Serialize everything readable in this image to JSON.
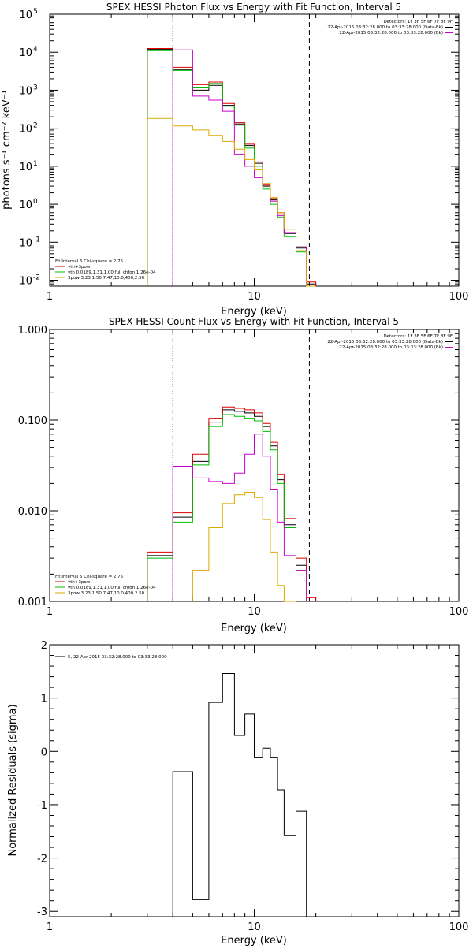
{
  "chart_data": [
    {
      "type": "line",
      "title": "SPEX HESSI Photon Flux vs Energy with Fit Function, Interval 5",
      "xlabel": "Energy (keV)",
      "ylabel": "photons s⁻¹ cm⁻² keV⁻¹",
      "xscale": "log",
      "yscale": "log",
      "xlim": [
        1,
        100
      ],
      "ylim": [
        0.007,
        100000
      ],
      "xticks": [
        {
          "v": 1,
          "label": "1"
        },
        {
          "v": 10,
          "label": "10"
        },
        {
          "v": 100,
          "label": "100"
        }
      ],
      "yticks": [
        {
          "v": 0.01,
          "base": "10",
          "exp": "-2"
        },
        {
          "v": 0.1,
          "base": "10",
          "exp": "-1"
        },
        {
          "v": 1,
          "base": "10",
          "exp": "0"
        },
        {
          "v": 10,
          "base": "10",
          "exp": "1"
        },
        {
          "v": 100,
          "base": "10",
          "exp": "2"
        },
        {
          "v": 1000,
          "base": "10",
          "exp": "3"
        },
        {
          "v": 10000,
          "base": "10",
          "exp": "4"
        },
        {
          "v": 100000,
          "base": "10",
          "exp": "5"
        }
      ],
      "vlines": [
        {
          "x": 4.0,
          "style": "dotted"
        },
        {
          "x": 18.6,
          "style": "dashed"
        }
      ],
      "legend_header": [
        "Detectors: 1F 3F 5F 6F 7F 8F 9F",
        "22-Apr-2015 03:32:28.000 to 03:33:28.000 (Data-Bk)",
        "22-Apr-2015 03:32:28.000 to 03:33:28.000 (Bk)"
      ],
      "legend_header_colors": [
        "",
        "#000000",
        "#cc00cc"
      ],
      "fit_legend": [
        "Fit Interval 5   Chi-square = 2.75",
        "vth+3pow",
        "vth 0.0189,1.31,1.00  full chfon 1.26e-04",
        "3pow 3.23,1.50,7.47,10.0,400,2.50"
      ],
      "fit_legend_colors": [
        "",
        "#cc0000",
        "#00bb00",
        "#ddaa00"
      ],
      "edges": [
        3.0,
        4.0,
        5.0,
        6.0,
        7.0,
        8.0,
        9.0,
        10.0,
        11.0,
        12.0,
        13.0,
        14.0,
        16.0,
        18.0,
        20.0
      ],
      "series": [
        {
          "color": "#000000",
          "values": [
            12000,
            3500,
            1000,
            1350,
            400,
            130,
            35,
            12,
            3.0,
            1.3,
            0.55,
            0.17,
            0.07,
            0.008
          ]
        },
        {
          "color": "#dd0000",
          "values": [
            12500,
            4000,
            1400,
            1650,
            450,
            140,
            38,
            13,
            3.2,
            1.4,
            0.6,
            0.18,
            0.075,
            0.009
          ]
        },
        {
          "color": "#00bb00",
          "values": [
            11000,
            3300,
            1150,
            1500,
            380,
            120,
            30,
            10,
            2.5,
            1.0,
            0.45,
            0.14,
            0.055,
            0.0065
          ]
        },
        {
          "color": "#cc00cc",
          "values": [
            null,
            11500,
            700,
            550,
            280,
            20,
            10,
            5,
            3.5,
            1.2,
            0.5,
            0.18,
            0.075,
            0.006
          ]
        },
        {
          "color": "#ddaa00",
          "values": [
            180,
            115,
            90,
            65,
            45,
            28,
            15,
            8,
            3.5,
            1.5,
            0.6,
            0.22,
            0.06,
            0.006
          ]
        }
      ]
    },
    {
      "type": "line",
      "title": "SPEX HESSI Count Flux vs Energy with Fit Function, Interval 5",
      "xlabel": "Energy (keV)",
      "ylabel": "",
      "xscale": "log",
      "yscale": "log",
      "xlim": [
        1,
        100
      ],
      "ylim": [
        0.001,
        1.0
      ],
      "xticks": [
        {
          "v": 1,
          "label": "1"
        },
        {
          "v": 10,
          "label": "10"
        },
        {
          "v": 100,
          "label": "100"
        }
      ],
      "yticks": [
        {
          "v": 0.001,
          "label": "0.001"
        },
        {
          "v": 0.01,
          "label": "0.010"
        },
        {
          "v": 0.1,
          "label": "0.100"
        },
        {
          "v": 1.0,
          "label": "1.000"
        }
      ],
      "vlines": [
        {
          "x": 4.0,
          "style": "dotted"
        },
        {
          "x": 18.6,
          "style": "dashed"
        }
      ],
      "legend_header": [
        "Detectors: 1F 3F 5F 6F 7F 8F 9F",
        "22-Apr-2015 03:32:28.000 to 03:33:28.000 (Data-Bk)",
        "22-Apr-2015 03:32:28.000 to 03:33:28.000 (Bk)"
      ],
      "legend_header_colors": [
        "",
        "#000000",
        "#cc00cc"
      ],
      "fit_legend": [
        "Fit Interval 5   Chi-square = 2.75",
        "vth+3pow",
        "vth 0.0189,1.31,1.00  full chfon 1.26e-04",
        "3pow 3.23,1.50,7.47,10.0,400,2.50"
      ],
      "fit_legend_colors": [
        "",
        "#cc0000",
        "#00bb00",
        "#ddaa00"
      ],
      "edges": [
        3.0,
        4.0,
        5.0,
        6.0,
        7.0,
        8.0,
        9.0,
        10.0,
        11.0,
        12.0,
        13.0,
        14.0,
        16.0,
        18.0,
        20.0
      ],
      "series": [
        {
          "color": "#000000",
          "values": [
            0.0032,
            0.0085,
            0.035,
            0.095,
            0.13,
            0.125,
            0.12,
            0.11,
            0.085,
            0.052,
            0.022,
            0.007,
            0.0025,
            null
          ]
        },
        {
          "color": "#dd0000",
          "values": [
            0.0035,
            0.0095,
            0.042,
            0.105,
            0.14,
            0.135,
            0.13,
            0.12,
            0.092,
            0.057,
            0.025,
            0.0082,
            0.003,
            0.0011
          ]
        },
        {
          "color": "#00bb00",
          "values": [
            0.003,
            0.0075,
            0.032,
            0.085,
            0.115,
            0.11,
            0.105,
            0.098,
            0.075,
            0.047,
            0.02,
            0.0065,
            0.0022,
            null
          ]
        },
        {
          "color": "#cc00cc",
          "values": [
            null,
            0.031,
            0.023,
            0.021,
            0.02,
            0.026,
            0.042,
            0.07,
            0.04,
            0.017,
            0.0075,
            0.0032,
            0.0022,
            null
          ]
        },
        {
          "color": "#ddaa00",
          "values": [
            null,
            null,
            0.0022,
            0.0065,
            0.012,
            0.015,
            0.016,
            0.014,
            0.008,
            0.0035,
            0.0015,
            0.001,
            null,
            null
          ]
        }
      ]
    },
    {
      "type": "line",
      "title": "",
      "xlabel": "Energy (keV)",
      "ylabel": "Normalized Residuals (sigma)",
      "xscale": "log",
      "yscale": "linear",
      "xlim": [
        1,
        100
      ],
      "ylim": [
        -3.1,
        2.0
      ],
      "xticks": [
        {
          "v": 1,
          "label": "1"
        },
        {
          "v": 10,
          "label": "10"
        },
        {
          "v": 100,
          "label": "100"
        }
      ],
      "yticks": [
        {
          "v": -3,
          "label": "-3"
        },
        {
          "v": -2,
          "label": "-2"
        },
        {
          "v": -1,
          "label": "-1"
        },
        {
          "v": 0,
          "label": "0"
        },
        {
          "v": 1,
          "label": "1"
        },
        {
          "v": 2,
          "label": "2"
        }
      ],
      "legend": [
        "5, 22-Apr-2015 03:32:28.000 to 03:33:28.000"
      ],
      "edges": [
        4.0,
        5.0,
        6.0,
        7.0,
        8.0,
        9.0,
        10.0,
        11.0,
        12.0,
        13.0,
        14.0,
        16.0,
        18.0
      ],
      "series": [
        {
          "color": "#000000",
          "values": [
            -0.38,
            -2.78,
            0.92,
            1.46,
            0.3,
            0.7,
            -0.12,
            0.06,
            -0.12,
            -0.72,
            -1.58,
            -1.12
          ]
        }
      ]
    }
  ]
}
